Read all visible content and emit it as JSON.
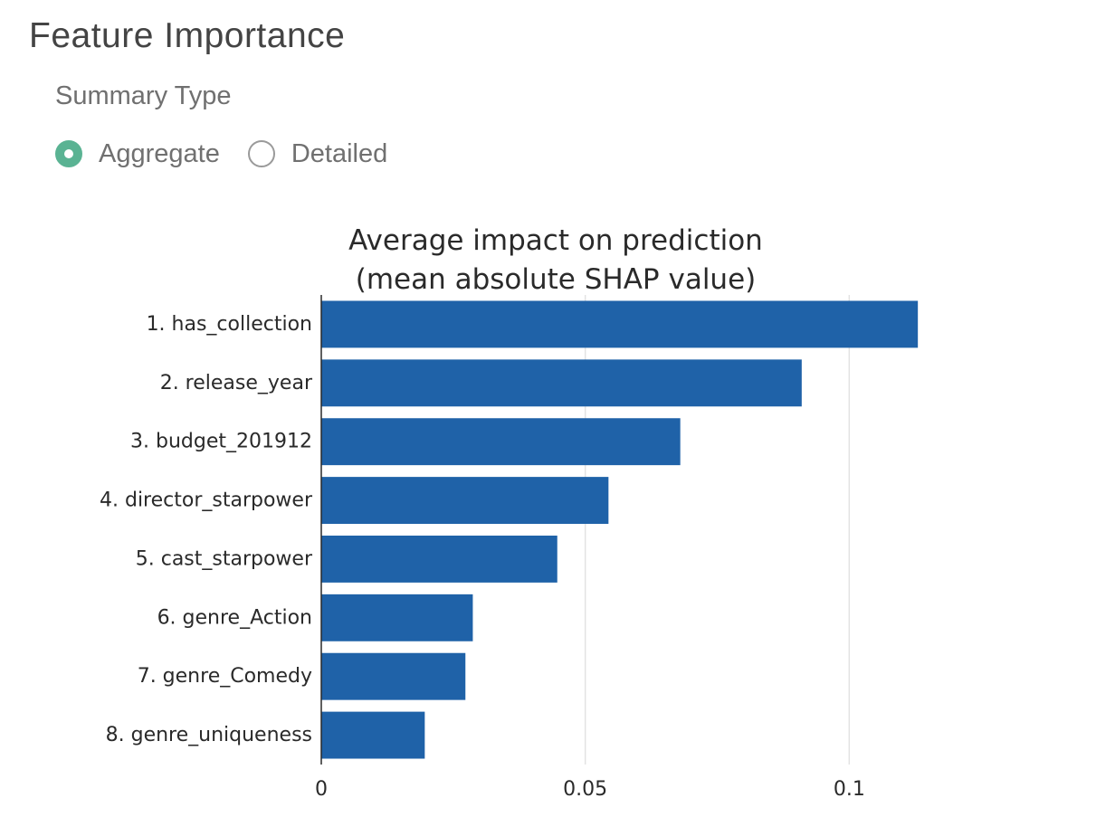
{
  "panel": {
    "title": "Feature Importance",
    "control_label": "Summary Type",
    "options": [
      {
        "label": "Aggregate",
        "selected": true
      },
      {
        "label": "Detailed",
        "selected": false
      }
    ],
    "accent_color": "#5ab393"
  },
  "chart_data": {
    "type": "bar",
    "orientation": "horizontal",
    "title_lines": [
      "Average impact on prediction",
      "(mean absolute SHAP value)"
    ],
    "categories": [
      "1. has_collection",
      "2. release_year",
      "3. budget_201912",
      "4. director_starpower",
      "5. cast_starpower",
      "6. genre_Action",
      "7. genre_Comedy",
      "8. genre_uniqueness"
    ],
    "values": [
      0.113,
      0.091,
      0.068,
      0.0544,
      0.0447,
      0.0287,
      0.0273,
      0.0196
    ],
    "xlim": [
      0,
      0.12
    ],
    "xticks": [
      0,
      0.05,
      0.1
    ],
    "xtick_labels": [
      "0",
      "0.05",
      "0.1"
    ],
    "grid": true,
    "bar_color": "#1f62a8",
    "xlabel": "",
    "ylabel": ""
  }
}
